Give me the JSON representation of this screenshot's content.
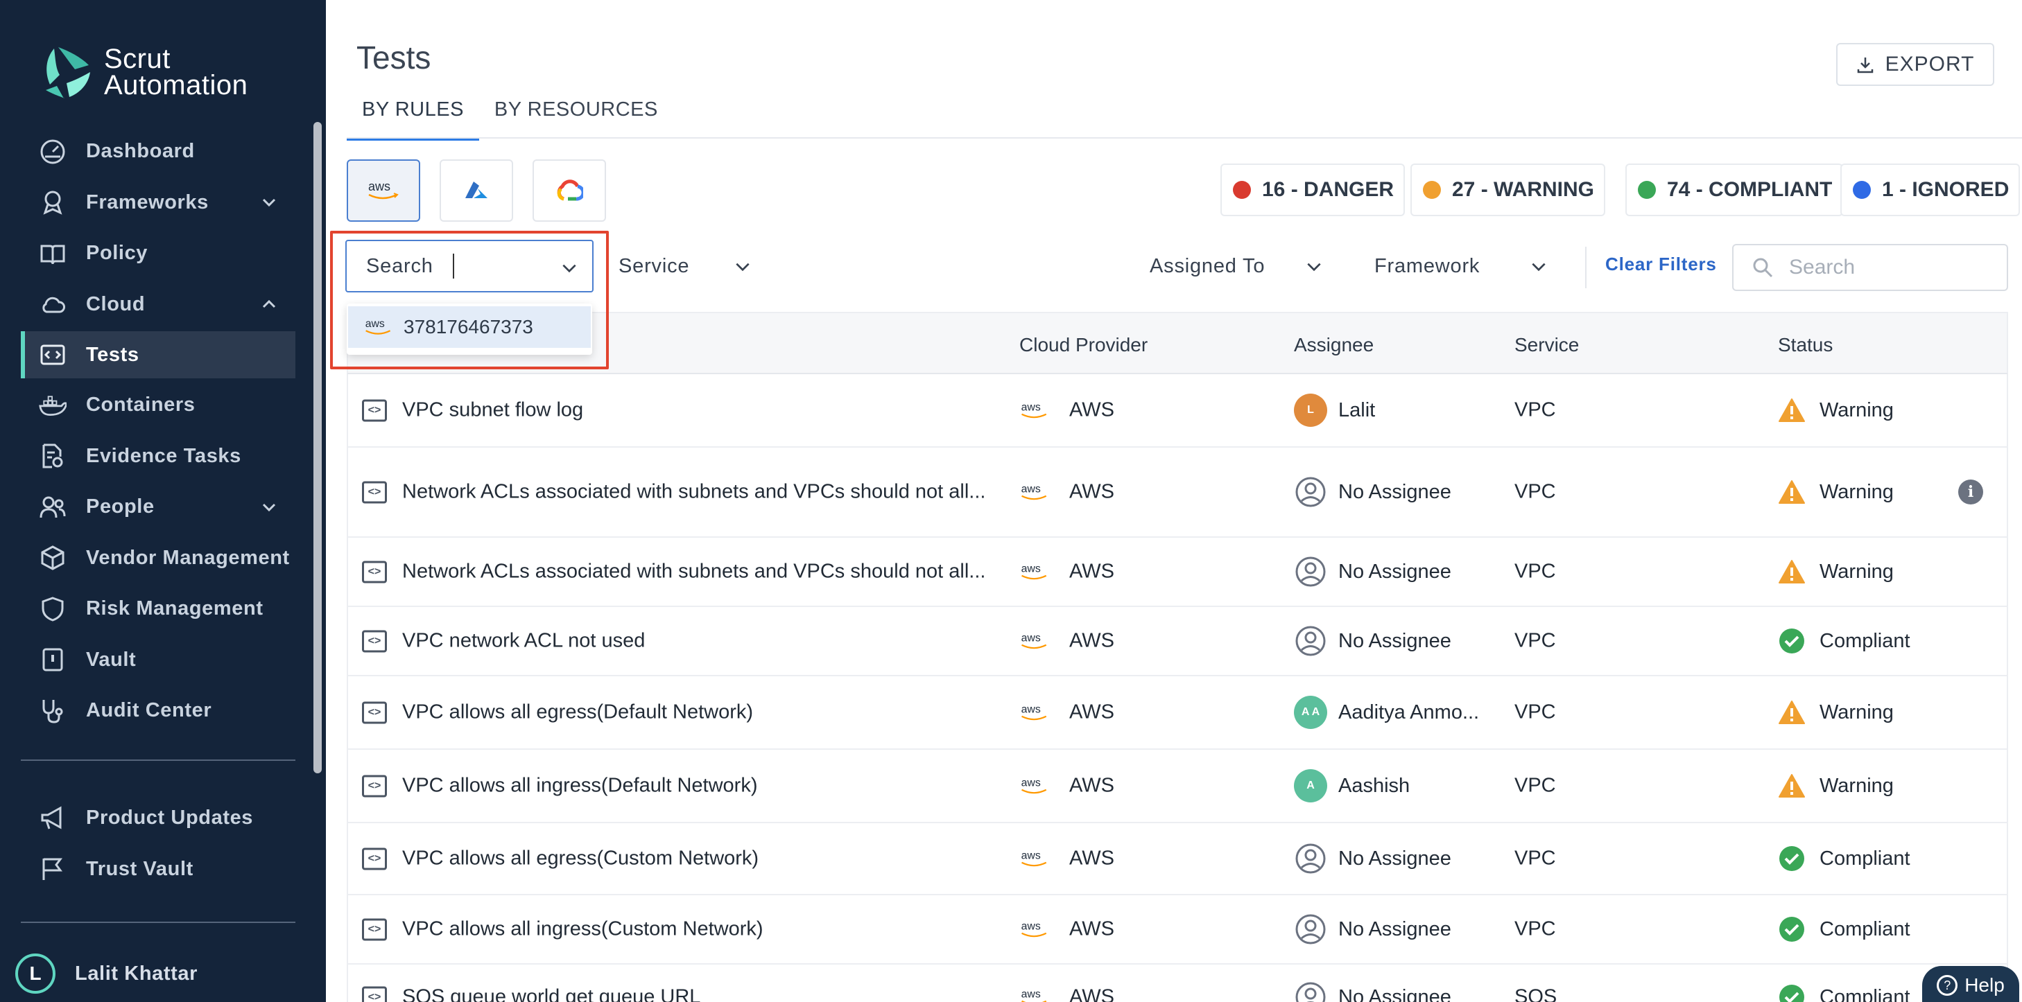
{
  "brand": {
    "line1": "Scrut",
    "line2": "Automation",
    "accent": "#5fd6c1"
  },
  "sidebar": {
    "items": [
      {
        "label": "Dashboard",
        "icon": "dashboard-icon"
      },
      {
        "label": "Frameworks",
        "icon": "award-icon",
        "chevron": "down"
      },
      {
        "label": "Policy",
        "icon": "book-icon"
      },
      {
        "label": "Cloud",
        "icon": "cloud-icon",
        "chevron": "up"
      },
      {
        "label": "Tests",
        "icon": "code-icon",
        "active": true
      },
      {
        "label": "Containers",
        "icon": "docker-icon"
      },
      {
        "label": "Evidence Tasks",
        "icon": "evidence-icon"
      },
      {
        "label": "People",
        "icon": "people-icon",
        "chevron": "down"
      },
      {
        "label": "Vendor Management",
        "icon": "box-icon"
      },
      {
        "label": "Risk Management",
        "icon": "shield-icon"
      },
      {
        "label": "Vault",
        "icon": "vault-icon"
      },
      {
        "label": "Audit Center",
        "icon": "stethoscope-icon"
      }
    ],
    "bottom_items": [
      {
        "label": "Product Updates",
        "icon": "megaphone-icon"
      },
      {
        "label": "Trust Vault",
        "icon": "flag-icon"
      }
    ],
    "user": {
      "initial": "L",
      "name": "Lalit Khattar"
    }
  },
  "header": {
    "title": "Tests",
    "export_label": "EXPORT",
    "tabs": [
      {
        "label": "BY RULES",
        "active": true
      },
      {
        "label": "BY RESOURCES",
        "active": false
      }
    ]
  },
  "counters": [
    {
      "label": "16 - DANGER",
      "color": "#d93a2f"
    },
    {
      "label": "27 - WARNING",
      "color": "#f0a030"
    },
    {
      "label": "74 - COMPLIANT",
      "color": "#3aa757"
    },
    {
      "label": "1 - IGNORED",
      "color": "#2f6ae5"
    }
  ],
  "filters": {
    "account_placeholder": "Search",
    "account_option": "378176467373",
    "service_label": "Service",
    "assigned_to_label": "Assigned To",
    "framework_label": "Framework",
    "clear_filters": "Clear Filters",
    "search_placeholder": "Search"
  },
  "table": {
    "columns": {
      "provider": "Cloud Provider",
      "assignee": "Assignee",
      "service": "Service",
      "status": "Status"
    },
    "rows": [
      {
        "name": "VPC subnet flow log",
        "provider": "AWS",
        "assignee": "Lalit",
        "avatar": "L",
        "avatar_color": "#e08a3c",
        "service": "VPC",
        "status": "Warning"
      },
      {
        "name": "Network ACLs associated with subnets and VPCs should not all...",
        "provider": "AWS",
        "assignee": "No Assignee",
        "avatar": "",
        "service": "VPC",
        "status": "Warning",
        "info": true
      },
      {
        "name": "Network ACLs associated with subnets and VPCs should not all...",
        "provider": "AWS",
        "assignee": "No Assignee",
        "avatar": "",
        "service": "VPC",
        "status": "Warning"
      },
      {
        "name": "VPC network ACL not used",
        "provider": "AWS",
        "assignee": "No Assignee",
        "avatar": "",
        "service": "VPC",
        "status": "Compliant"
      },
      {
        "name": "VPC allows all egress(Default Network)",
        "provider": "AWS",
        "assignee": "Aaditya Anmo...",
        "avatar": "A A",
        "avatar_color": "#5bbf9c",
        "service": "VPC",
        "status": "Warning"
      },
      {
        "name": "VPC allows all ingress(Default Network)",
        "provider": "AWS",
        "assignee": "Aashish",
        "avatar": "A",
        "avatar_color": "#5bbf9c",
        "service": "VPC",
        "status": "Warning"
      },
      {
        "name": "VPC allows all egress(Custom Network)",
        "provider": "AWS",
        "assignee": "No Assignee",
        "avatar": "",
        "service": "VPC",
        "status": "Compliant"
      },
      {
        "name": "VPC allows all ingress(Custom Network)",
        "provider": "AWS",
        "assignee": "No Assignee",
        "avatar": "",
        "service": "VPC",
        "status": "Compliant"
      },
      {
        "name": "SQS queue world get queue URL",
        "provider": "AWS",
        "assignee": "No Assignee",
        "avatar": "",
        "service": "SQS",
        "status": "Compliant"
      }
    ]
  },
  "help_label": "Help"
}
